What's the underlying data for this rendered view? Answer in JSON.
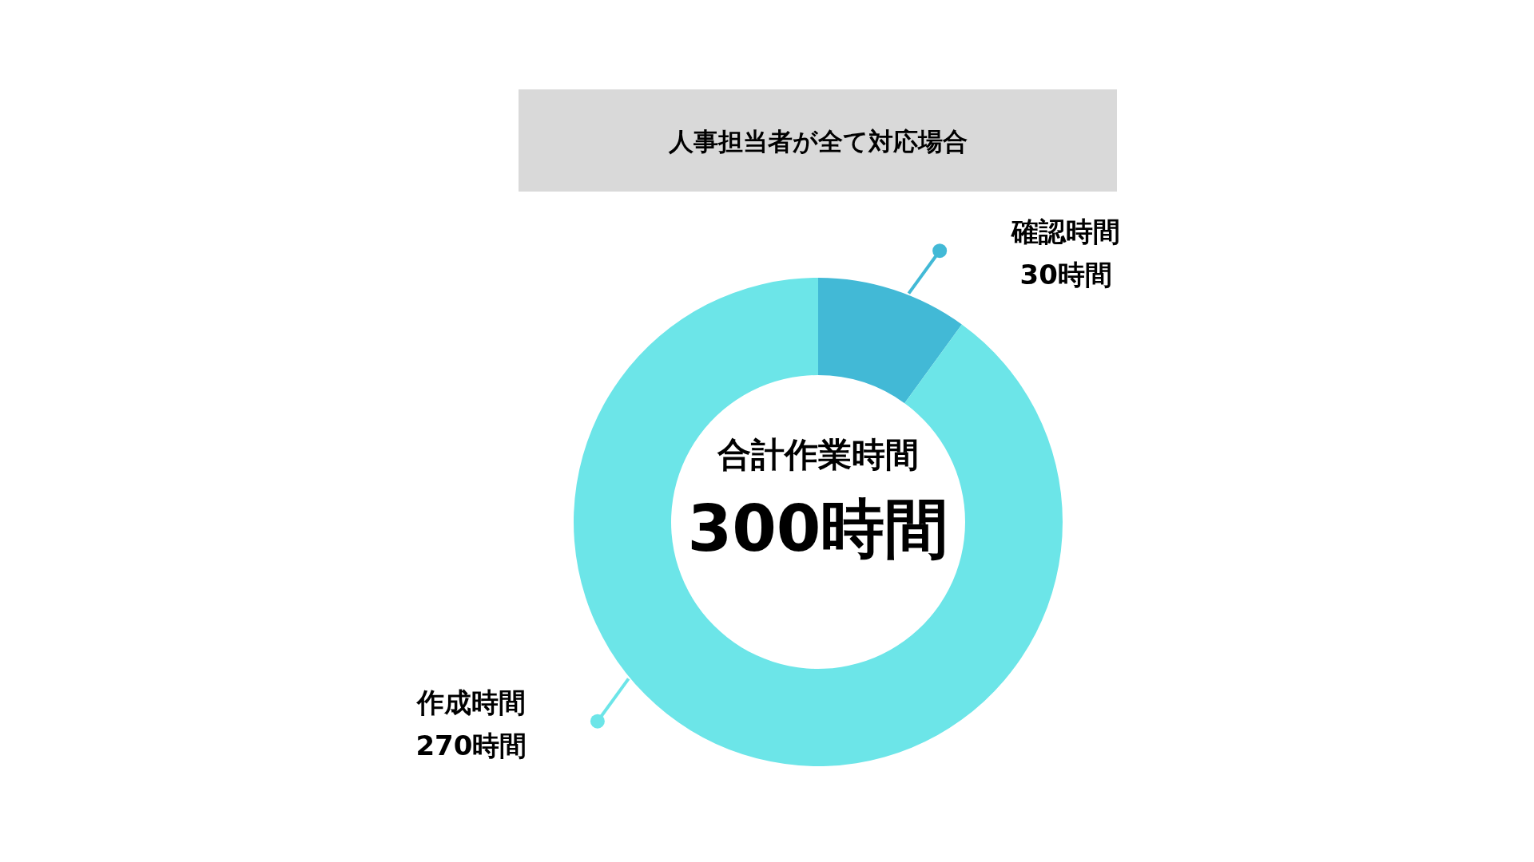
{
  "chart_data": {
    "type": "donut",
    "title": "人事担当者が全て対応場合",
    "categories": [
      "確認時間",
      "作成時間"
    ],
    "values": [
      30,
      270
    ],
    "colors": [
      "#42b9d6",
      "#6ce5e8"
    ],
    "value_labels": [
      "30時間",
      "270時間"
    ],
    "annotations": [
      "合計作業時間",
      "300時間"
    ]
  }
}
